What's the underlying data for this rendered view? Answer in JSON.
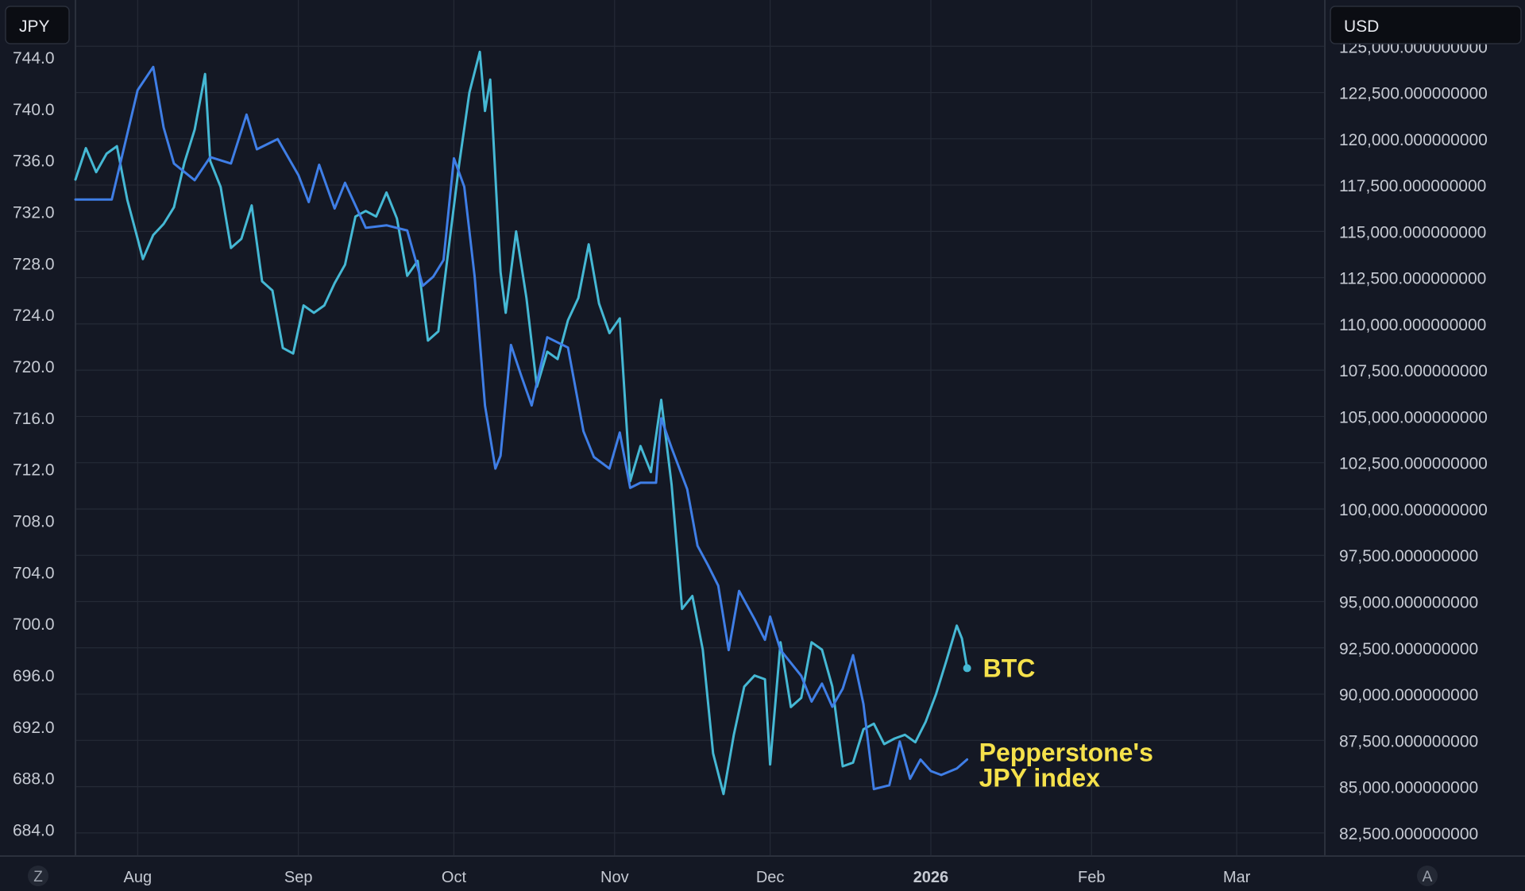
{
  "left_unit": "JPY",
  "right_unit": "USD",
  "corner_left": "Z",
  "corner_right": "A",
  "colors": {
    "background": "#141824",
    "grid": "#252a36",
    "btc_line": "#45b8d4",
    "jpy_line": "#3f7ee6",
    "label": "#f5e14b"
  },
  "chart_data": {
    "type": "line",
    "left_axis": {
      "ylim": [
        682.0,
        748.5
      ],
      "ticks": [
        "744.0",
        "740.0",
        "736.0",
        "732.0",
        "728.0",
        "724.0",
        "720.0",
        "716.0",
        "712.0",
        "708.0",
        "704.0",
        "700.0",
        "696.0",
        "692.0",
        "688.0",
        "684.0"
      ],
      "tick_values": [
        744,
        740,
        736,
        732,
        728,
        724,
        720,
        716,
        712,
        708,
        704,
        700,
        696,
        692,
        688,
        684
      ]
    },
    "right_axis": {
      "ylim": [
        81250,
        127500
      ],
      "ticks": [
        "125,000.000000000",
        "122,500.000000000",
        "120,000.000000000",
        "117,500.000000000",
        "115,000.000000000",
        "112,500.000000000",
        "110,000.000000000",
        "107,500.000000000",
        "105,000.000000000",
        "102,500.000000000",
        "100,000.000000000",
        "97,500.000000000",
        "95,000.000000000",
        "92,500.000000000",
        "90,000.000000000",
        "87,500.000000000",
        "85,000.000000000",
        "82,500.000000000"
      ],
      "tick_values": [
        125000,
        122500,
        120000,
        117500,
        115000,
        112500,
        110000,
        107500,
        105000,
        102500,
        100000,
        97500,
        95000,
        92500,
        90000,
        87500,
        85000,
        82500
      ]
    },
    "x_axis": {
      "range": [
        "2025-07-20",
        "2026-03-18"
      ],
      "ticks": [
        {
          "label": "Aug",
          "date": "2025-08-01",
          "bold": false
        },
        {
          "label": "Sep",
          "date": "2025-09-01",
          "bold": false
        },
        {
          "label": "Oct",
          "date": "2025-10-01",
          "bold": false
        },
        {
          "label": "Nov",
          "date": "2025-11-01",
          "bold": false
        },
        {
          "label": "Dec",
          "date": "2025-12-01",
          "bold": false
        },
        {
          "label": "2026",
          "date": "2026-01-01",
          "bold": true
        },
        {
          "label": "Feb",
          "date": "2026-02-01",
          "bold": false
        },
        {
          "label": "Mar",
          "date": "2026-03-01",
          "bold": false
        }
      ]
    },
    "series": [
      {
        "name": "BTC",
        "axis": "right",
        "color": "#45b8d4",
        "points": [
          [
            "2025-07-20",
            117800
          ],
          [
            "2025-07-22",
            119500
          ],
          [
            "2025-07-24",
            118200
          ],
          [
            "2025-07-26",
            119200
          ],
          [
            "2025-07-28",
            119600
          ],
          [
            "2025-07-30",
            116700
          ],
          [
            "2025-08-01",
            114600
          ],
          [
            "2025-08-02",
            113500
          ],
          [
            "2025-08-04",
            114800
          ],
          [
            "2025-08-06",
            115400
          ],
          [
            "2025-08-08",
            116300
          ],
          [
            "2025-08-10",
            118700
          ],
          [
            "2025-08-12",
            120500
          ],
          [
            "2025-08-14",
            123500
          ],
          [
            "2025-08-15",
            118800
          ],
          [
            "2025-08-17",
            117400
          ],
          [
            "2025-08-19",
            114100
          ],
          [
            "2025-08-21",
            114600
          ],
          [
            "2025-08-23",
            116400
          ],
          [
            "2025-08-25",
            112300
          ],
          [
            "2025-08-27",
            111800
          ],
          [
            "2025-08-29",
            108700
          ],
          [
            "2025-08-31",
            108400
          ],
          [
            "2025-09-02",
            111000
          ],
          [
            "2025-09-04",
            110600
          ],
          [
            "2025-09-06",
            111000
          ],
          [
            "2025-09-08",
            112200
          ],
          [
            "2025-09-10",
            113200
          ],
          [
            "2025-09-12",
            115800
          ],
          [
            "2025-09-14",
            116100
          ],
          [
            "2025-09-16",
            115800
          ],
          [
            "2025-09-18",
            117100
          ],
          [
            "2025-09-20",
            115700
          ],
          [
            "2025-09-22",
            112600
          ],
          [
            "2025-09-24",
            113400
          ],
          [
            "2025-09-26",
            109100
          ],
          [
            "2025-09-28",
            109600
          ],
          [
            "2025-09-30",
            114100
          ],
          [
            "2025-10-02",
            118600
          ],
          [
            "2025-10-04",
            122500
          ],
          [
            "2025-10-06",
            124700
          ],
          [
            "2025-10-07",
            121500
          ],
          [
            "2025-10-08",
            123200
          ],
          [
            "2025-10-10",
            112800
          ],
          [
            "2025-10-11",
            110600
          ],
          [
            "2025-10-13",
            115000
          ],
          [
            "2025-10-15",
            111400
          ],
          [
            "2025-10-17",
            106600
          ],
          [
            "2025-10-19",
            108500
          ],
          [
            "2025-10-21",
            108100
          ],
          [
            "2025-10-23",
            110200
          ],
          [
            "2025-10-25",
            111400
          ],
          [
            "2025-10-27",
            114300
          ],
          [
            "2025-10-29",
            111100
          ],
          [
            "2025-10-31",
            109500
          ],
          [
            "2025-11-02",
            110300
          ],
          [
            "2025-11-04",
            101500
          ],
          [
            "2025-11-06",
            103400
          ],
          [
            "2025-11-08",
            102000
          ],
          [
            "2025-11-10",
            105900
          ],
          [
            "2025-11-12",
            101300
          ],
          [
            "2025-11-14",
            94600
          ],
          [
            "2025-11-16",
            95300
          ],
          [
            "2025-11-18",
            92400
          ],
          [
            "2025-11-20",
            86800
          ],
          [
            "2025-11-22",
            84600
          ],
          [
            "2025-11-24",
            87800
          ],
          [
            "2025-11-26",
            90400
          ],
          [
            "2025-11-28",
            91000
          ],
          [
            "2025-11-30",
            90800
          ],
          [
            "2025-12-01",
            86200
          ],
          [
            "2025-12-03",
            92800
          ],
          [
            "2025-12-05",
            89300
          ],
          [
            "2025-12-07",
            89800
          ],
          [
            "2025-12-09",
            92800
          ],
          [
            "2025-12-11",
            92400
          ],
          [
            "2025-12-13",
            90400
          ],
          [
            "2025-12-15",
            86100
          ],
          [
            "2025-12-17",
            86300
          ],
          [
            "2025-12-19",
            88100
          ],
          [
            "2025-12-21",
            88400
          ],
          [
            "2025-12-23",
            87300
          ],
          [
            "2025-12-25",
            87600
          ],
          [
            "2025-12-27",
            87800
          ],
          [
            "2025-12-29",
            87400
          ],
          [
            "2025-12-31",
            88500
          ],
          [
            "2026-01-02",
            90000
          ],
          [
            "2026-01-04",
            91800
          ],
          [
            "2026-01-06",
            93700
          ],
          [
            "2026-01-07",
            93000
          ],
          [
            "2026-01-08",
            91400
          ]
        ]
      },
      {
        "name": "Pepperstone's JPY index",
        "axis": "left",
        "color": "#3f7ee6",
        "points": [
          [
            "2025-07-20",
            733.0
          ],
          [
            "2025-07-23",
            733.0
          ],
          [
            "2025-07-27",
            733.0
          ],
          [
            "2025-08-01",
            741.5
          ],
          [
            "2025-08-04",
            743.3
          ],
          [
            "2025-08-06",
            738.6
          ],
          [
            "2025-08-08",
            735.8
          ],
          [
            "2025-08-12",
            734.5
          ],
          [
            "2025-08-15",
            736.3
          ],
          [
            "2025-08-19",
            735.8
          ],
          [
            "2025-08-22",
            739.6
          ],
          [
            "2025-08-24",
            736.9
          ],
          [
            "2025-08-28",
            737.7
          ],
          [
            "2025-09-01",
            734.9
          ],
          [
            "2025-09-03",
            732.8
          ],
          [
            "2025-09-05",
            735.7
          ],
          [
            "2025-09-08",
            732.3
          ],
          [
            "2025-09-10",
            734.3
          ],
          [
            "2025-09-14",
            730.8
          ],
          [
            "2025-09-18",
            731.0
          ],
          [
            "2025-09-22",
            730.6
          ],
          [
            "2025-09-25",
            726.3
          ],
          [
            "2025-09-27",
            727.0
          ],
          [
            "2025-09-29",
            728.3
          ],
          [
            "2025-10-01",
            736.2
          ],
          [
            "2025-10-03",
            734.0
          ],
          [
            "2025-10-05",
            727.0
          ],
          [
            "2025-10-07",
            717.0
          ],
          [
            "2025-10-09",
            712.1
          ],
          [
            "2025-10-10",
            713.1
          ],
          [
            "2025-10-12",
            721.7
          ],
          [
            "2025-10-14",
            719.3
          ],
          [
            "2025-10-16",
            717.0
          ],
          [
            "2025-10-19",
            722.3
          ],
          [
            "2025-10-23",
            721.5
          ],
          [
            "2025-10-26",
            715.0
          ],
          [
            "2025-10-28",
            713.0
          ],
          [
            "2025-10-31",
            712.1
          ],
          [
            "2025-11-02",
            714.9
          ],
          [
            "2025-11-04",
            710.6
          ],
          [
            "2025-11-06",
            711.0
          ],
          [
            "2025-11-09",
            711.0
          ],
          [
            "2025-11-10",
            716.0
          ],
          [
            "2025-11-12",
            713.7
          ],
          [
            "2025-11-15",
            710.5
          ],
          [
            "2025-11-17",
            706.1
          ],
          [
            "2025-11-19",
            704.6
          ],
          [
            "2025-11-21",
            703.0
          ],
          [
            "2025-11-23",
            698.0
          ],
          [
            "2025-11-25",
            702.6
          ],
          [
            "2025-11-28",
            700.4
          ],
          [
            "2025-11-30",
            698.8
          ],
          [
            "2025-12-01",
            700.6
          ],
          [
            "2025-12-03",
            698.0
          ],
          [
            "2025-12-07",
            696.0
          ],
          [
            "2025-12-09",
            694.0
          ],
          [
            "2025-12-11",
            695.4
          ],
          [
            "2025-12-13",
            693.6
          ],
          [
            "2025-12-15",
            695.0
          ],
          [
            "2025-12-17",
            697.6
          ],
          [
            "2025-12-19",
            693.8
          ],
          [
            "2025-12-21",
            687.2
          ],
          [
            "2025-12-24",
            687.5
          ],
          [
            "2025-12-26",
            690.9
          ],
          [
            "2025-12-28",
            688.0
          ],
          [
            "2025-12-30",
            689.5
          ],
          [
            "2026-01-01",
            688.6
          ],
          [
            "2026-01-03",
            688.3
          ],
          [
            "2026-01-06",
            688.8
          ],
          [
            "2026-01-08",
            689.5
          ]
        ]
      }
    ],
    "annotations": [
      {
        "text": "BTC"
      },
      {
        "lines": [
          "Pepperstone's",
          "JPY index"
        ]
      }
    ],
    "grid": true,
    "legend": "none"
  }
}
